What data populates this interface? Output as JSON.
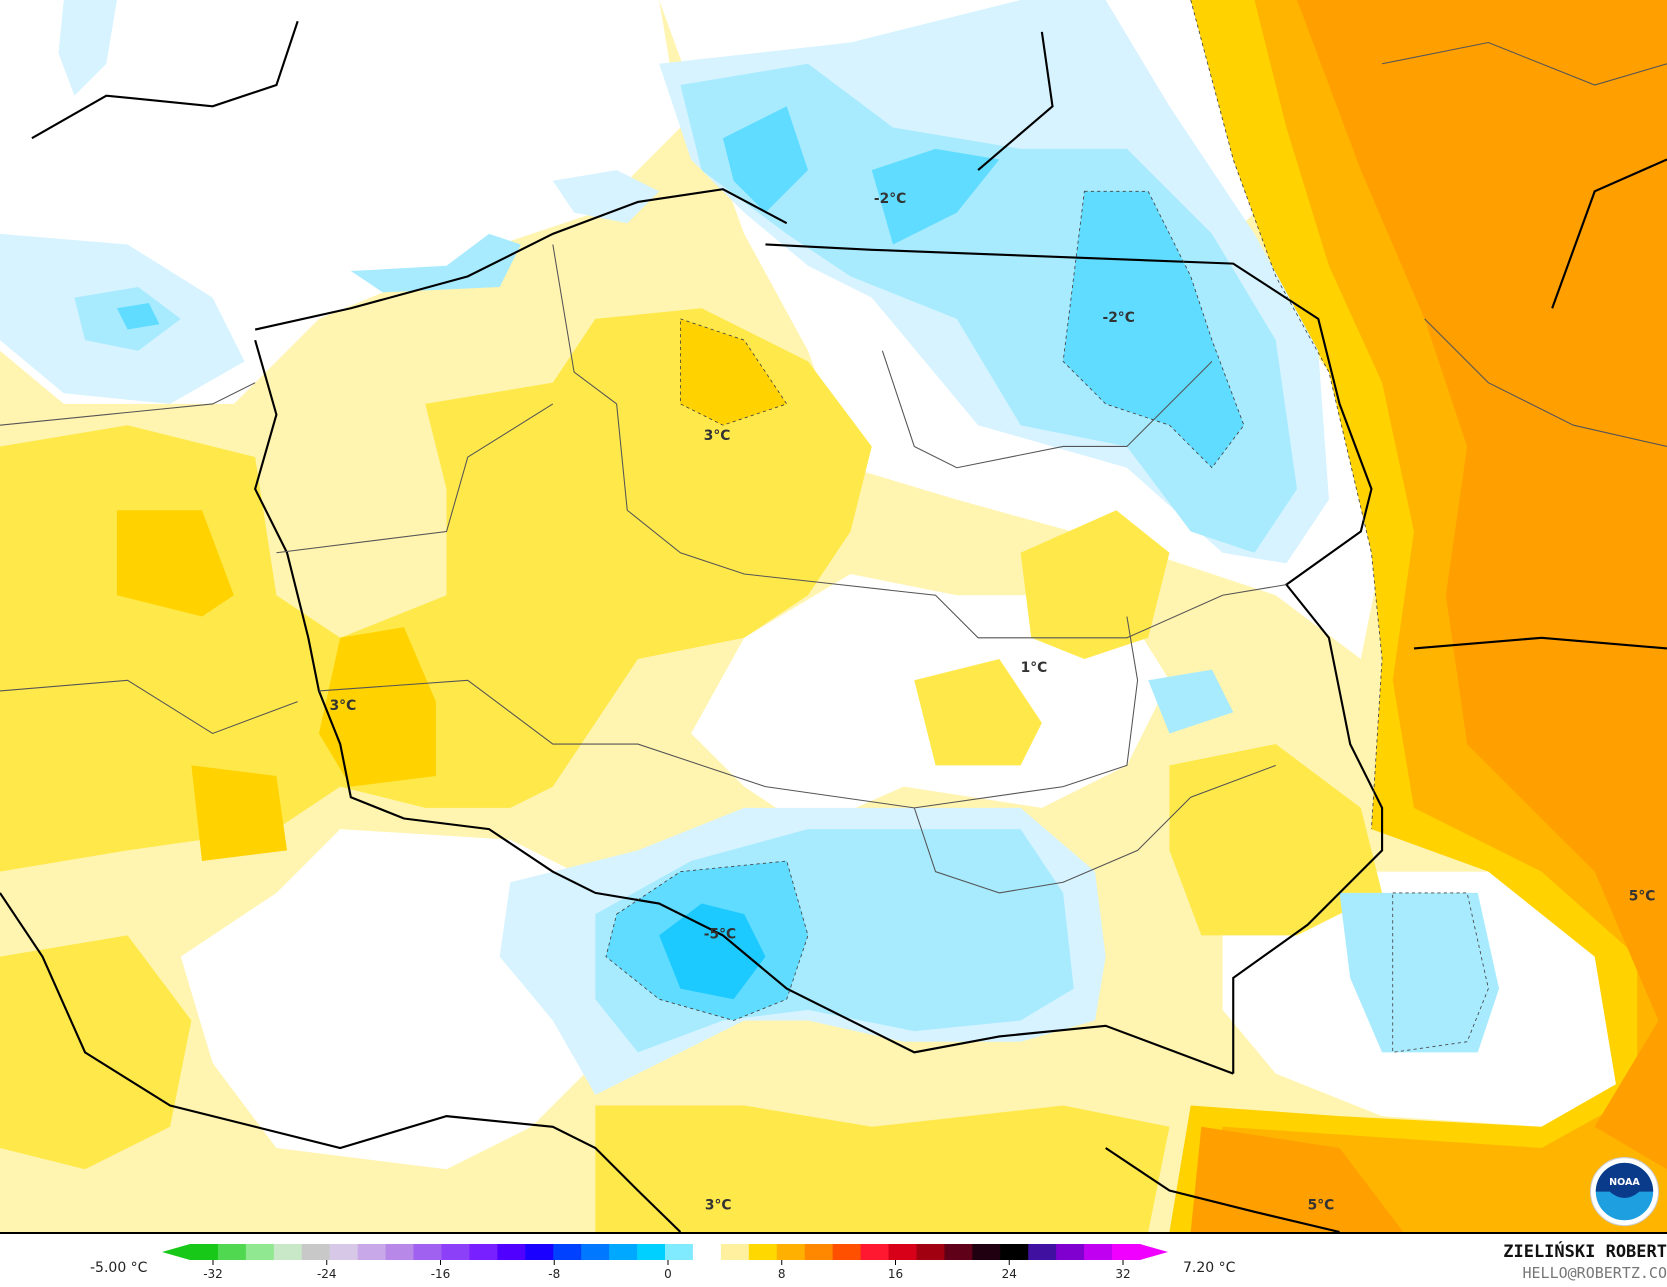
{
  "map": {
    "labels": [
      "-2°C",
      "-2°C",
      "3°C",
      "3°C",
      "1°C",
      "-5°C",
      "5°C",
      "3°C",
      "5°C"
    ],
    "colors": {
      "light_yellow": "#fff4b0",
      "yellow": "#ffe94a",
      "gold": "#ffd200",
      "orange_light": "#ffb400",
      "orange": "#ff9f00",
      "pale_blue": "#d6f3ff",
      "light_blue": "#a8ebff",
      "blue": "#5fdcff",
      "deep_blue": "#1ccaff"
    },
    "logo": "NOAA"
  },
  "legend": {
    "min_label": "-5.00 °C",
    "max_label": "7.20 °C",
    "ticks": [
      "-32",
      "-24",
      "-16",
      "-8",
      "0",
      "8",
      "16",
      "24",
      "32"
    ],
    "colors": [
      "#18c818",
      "#50d850",
      "#90e890",
      "#c8e8c8",
      "#c8c8c8",
      "#d8c8e8",
      "#c8a8e8",
      "#b888e8",
      "#a060f0",
      "#8c40f8",
      "#7820ff",
      "#5000ff",
      "#1a00ff",
      "#0040ff",
      "#0078ff",
      "#00a8ff",
      "#00d0ff",
      "#80eaff",
      "#ffffff",
      "#fff0a0",
      "#ffd800",
      "#ffb000",
      "#ff8800",
      "#ff5000",
      "#ff1830",
      "#d80018",
      "#a00010",
      "#600018",
      "#200010",
      "#000000",
      "#4010a0",
      "#8000d0",
      "#c000f0",
      "#f000ff"
    ]
  },
  "author": {
    "name": "ZIELIŃSKI ROBERT",
    "email": "HELLO@ROBERTZ.CO"
  }
}
